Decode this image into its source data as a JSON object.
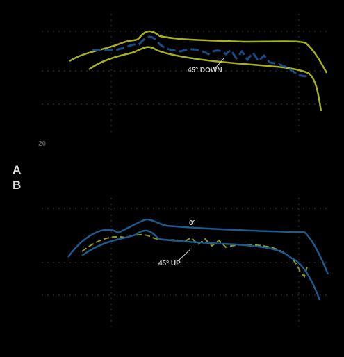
{
  "panel_a": {
    "label": "A",
    "annotation": "45° DOWN",
    "x_start_label": "20"
  },
  "panel_b": {
    "label": "B",
    "annotations": [
      "0°",
      "45° UP"
    ]
  }
}
